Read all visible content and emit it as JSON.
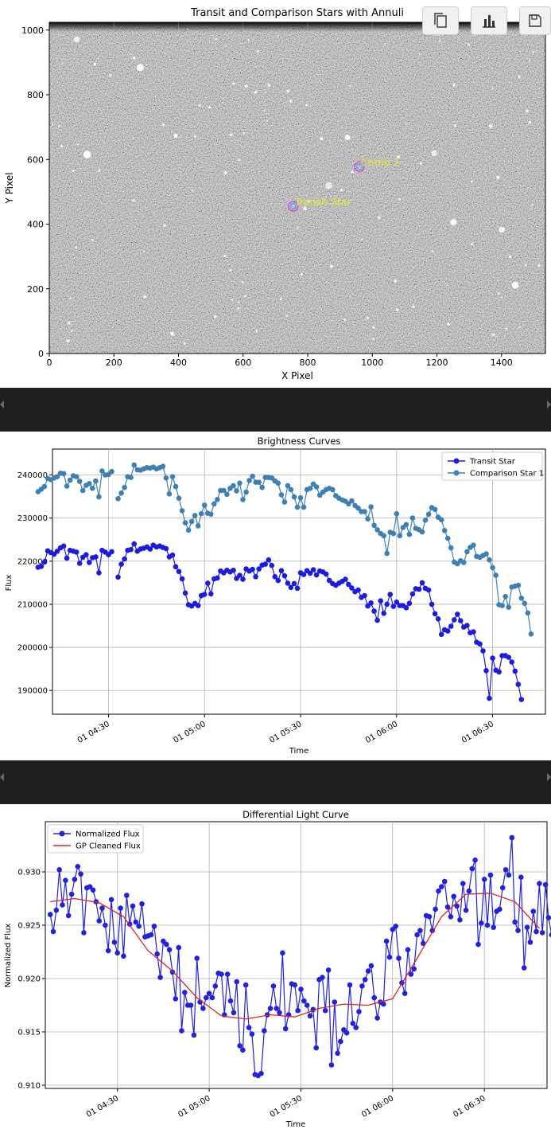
{
  "toolbar": {
    "buttons": [
      {
        "name": "copy-icon"
      },
      {
        "name": "bar-chart-icon"
      },
      {
        "name": "save-icon"
      }
    ]
  },
  "colors": {
    "transit": "#1c1ce0",
    "comparison": "#3e7fb4",
    "normalized": "#2222dd",
    "gp": "#e0241e",
    "label": "#e8e832"
  },
  "chart_data": [
    {
      "type": "image",
      "title": "Transit and Comparison Stars with Annuli",
      "xlabel": "X Pixel",
      "ylabel": "Y Pixel",
      "xlim": [
        0,
        1536
      ],
      "ylim": [
        0,
        1024
      ],
      "xticks": [
        0,
        200,
        400,
        600,
        800,
        1000,
        1200,
        1400
      ],
      "yticks": [
        0,
        200,
        400,
        600,
        800,
        1000
      ],
      "grid": true,
      "annotations": [
        {
          "label": "Transit Star",
          "x": 755,
          "y": 455
        },
        {
          "label": "Comp 1",
          "x": 960,
          "y": 578
        }
      ]
    },
    {
      "type": "line",
      "title": "Brightness Curves",
      "xlabel": "Time",
      "ylabel": "Flux",
      "xticks": [
        "01 04:30",
        "01 05:00",
        "01 05:30",
        "01 06:00",
        "01 06:30"
      ],
      "yticks": [
        190000,
        200000,
        210000,
        220000,
        230000,
        240000
      ],
      "ylim": [
        184500,
        246000
      ],
      "xlim_minutes": [
        4.5,
        158.5
      ],
      "legend": "top-right",
      "grid": true,
      "x_start": "01 04:08",
      "x_step_minutes": 1.0,
      "series": [
        {
          "name": "Transit Star",
          "values": [
            218600,
            218800,
            219800,
            222400,
            222000,
            221600,
            222300,
            223100,
            223500,
            220700,
            222500,
            222300,
            222100,
            219500,
            220900,
            221500,
            219700,
            220800,
            221000,
            217300,
            222500,
            222100,
            221500,
            222200,
            null,
            216300,
            219300,
            220500,
            222500,
            222700,
            224000,
            222300,
            222800,
            223000,
            223300,
            222800,
            223700,
            223300,
            223500,
            223200,
            222900,
            221000,
            221400,
            218700,
            217600,
            215900,
            212600,
            209900,
            209600,
            210200,
            209700,
            212000,
            212300,
            214900,
            212400,
            215900,
            216100,
            217700,
            217300,
            217900,
            217500,
            217900,
            216000,
            216700,
            215800,
            218200,
            217700,
            218100,
            216400,
            218200,
            219100,
            219300,
            220300,
            219000,
            216400,
            215500,
            217800,
            216600,
            214900,
            213900,
            214800,
            213700,
            217300,
            216900,
            217800,
            217200,
            218000,
            216800,
            217700,
            217500,
            217000,
            215500,
            214800,
            214400,
            214900,
            215300,
            215800,
            214600,
            213800,
            212900,
            213300,
            211600,
            212000,
            209600,
            210300,
            208400,
            206300,
            210800,
            207900,
            210000,
            212300,
            209500,
            210500,
            209700,
            209700,
            209200,
            210200,
            212400,
            213600,
            213500,
            215000,
            213700,
            213300,
            210000,
            207800,
            206600,
            203000,
            204100,
            203800,
            204900,
            206400,
            207700,
            206200,
            204700,
            205100,
            203400,
            203600,
            201200,
            200800,
            199200,
            194600,
            188200,
            197500,
            194700,
            194300,
            198100,
            198100,
            197700,
            196600,
            194500,
            191400,
            187900
          ]
        },
        {
          "name": "Comparison Star 1",
          "values": [
            236100,
            236700,
            237300,
            239200,
            238900,
            239300,
            239600,
            240400,
            240300,
            237400,
            238800,
            239800,
            239600,
            238500,
            236400,
            237600,
            238000,
            236900,
            238600,
            234900,
            240900,
            240000,
            240100,
            240800,
            null,
            234500,
            235800,
            237100,
            239600,
            239400,
            242300,
            241200,
            241100,
            241400,
            241700,
            241600,
            241800,
            241400,
            241700,
            242000,
            239300,
            235600,
            239600,
            237300,
            234600,
            231700,
            228900,
            227200,
            229200,
            230600,
            228200,
            231000,
            233000,
            231100,
            230900,
            233300,
            234300,
            236400,
            236400,
            235500,
            236900,
            237500,
            236300,
            238100,
            234300,
            236000,
            238700,
            239700,
            238300,
            238300,
            237100,
            239400,
            239400,
            239300,
            238600,
            238100,
            235400,
            233700,
            237500,
            236600,
            234900,
            232500,
            234700,
            232500,
            236600,
            236900,
            237900,
            237200,
            235300,
            236000,
            236600,
            236900,
            236600,
            235200,
            234600,
            234200,
            233900,
            233300,
            234000,
            232900,
            232300,
            231500,
            231500,
            229800,
            232600,
            228300,
            227300,
            226400,
            225900,
            221800,
            226700,
            226400,
            231000,
            225900,
            227800,
            228500,
            226200,
            230000,
            227600,
            227300,
            226800,
            229500,
            230900,
            232400,
            232000,
            230200,
            229600,
            227100,
            225300,
            223100,
            219800,
            219400,
            220100,
            219700,
            222200,
            223200,
            223700,
            221100,
            220900,
            221300,
            221700,
            220300,
            218500,
            216700,
            209900,
            209700,
            211800,
            209300,
            214000,
            214200,
            214400,
            211400,
            210200,
            208000,
            203100
          ]
        }
      ]
    },
    {
      "type": "line",
      "title": "Differential Light Curve",
      "xlabel": "Time",
      "ylabel": "Normalized Flux",
      "xticks": [
        "01 04:30",
        "01 05:00",
        "01 05:30",
        "01 06:00",
        "01 06:30"
      ],
      "yticks": [
        0.91,
        0.915,
        0.92,
        0.925,
        0.93
      ],
      "ylim": [
        0.9097,
        0.9347
      ],
      "xlim_minutes": [
        -1.6,
        162.5
      ],
      "legend": "top-left",
      "grid": true,
      "x_start": "01 04:08",
      "x_step_minutes": 1.0,
      "series": [
        {
          "name": "Normalized Flux",
          "values": [
            0.926,
            0.9244,
            0.9264,
            0.9302,
            0.9269,
            0.9292,
            0.9259,
            0.9279,
            0.9293,
            0.9305,
            0.9298,
            0.9243,
            0.9285,
            0.9286,
            0.9283,
            0.9272,
            0.9254,
            0.9266,
            0.925,
            0.9226,
            0.9274,
            0.9234,
            0.9224,
            0.9266,
            0.9221,
            0.9278,
            0.9251,
            0.9268,
            0.9253,
            0.9249,
            0.927,
            0.9239,
            0.924,
            0.9241,
            0.9249,
            0.9223,
            0.9201,
            0.9235,
            0.9232,
            0.9227,
            0.9206,
            0.9181,
            0.9229,
            0.9151,
            0.9187,
            0.9175,
            0.9175,
            0.9147,
            0.9219,
            0.9178,
            0.9172,
            0.9182,
            0.9186,
            0.9182,
            0.9193,
            0.9205,
            0.9204,
            0.9166,
            0.9204,
            0.9179,
            0.9168,
            0.9197,
            0.9137,
            0.9133,
            0.9194,
            0.9154,
            0.9148,
            0.911,
            0.9109,
            0.9111,
            0.9151,
            0.9166,
            0.9172,
            0.9193,
            0.9172,
            0.9168,
            0.9224,
            0.9153,
            0.9166,
            0.9195,
            0.9194,
            0.917,
            0.919,
            0.9179,
            0.9175,
            0.9165,
            0.9171,
            0.9135,
            0.9199,
            0.9201,
            0.917,
            0.9208,
            0.9119,
            0.9178,
            0.913,
            0.9141,
            0.9152,
            0.9149,
            0.9194,
            0.9158,
            0.9154,
            0.9169,
            0.9193,
            0.9199,
            0.9207,
            0.9212,
            0.9182,
            0.9163,
            0.9178,
            0.9176,
            0.9235,
            0.922,
            0.9246,
            0.9249,
            0.9219,
            0.9196,
            0.9186,
            0.9227,
            0.9204,
            0.9209,
            0.9241,
            0.9245,
            0.9233,
            0.9259,
            0.9258,
            0.9245,
            0.9265,
            0.9282,
            0.9286,
            0.9291,
            0.9267,
            0.9258,
            0.9277,
            0.9268,
            0.9255,
            0.9289,
            0.9264,
            0.9282,
            0.9303,
            0.9311,
            0.9232,
            0.9252,
            0.9293,
            0.925,
            0.9297,
            0.9248,
            0.9263,
            0.9265,
            0.9285,
            0.9302,
            0.9297,
            0.9332,
            0.9253,
            0.9245,
            0.9295,
            0.921,
            0.9248,
            0.9234,
            0.9263,
            0.9244,
            0.9289,
            0.9243,
            0.9288,
            0.9257,
            0.9241,
            0.9284,
            0.9271
          ]
        },
        {
          "name": "GP Cleaned Flux",
          "type": "smooth",
          "x_minutes": [
            0,
            8,
            16,
            24,
            32,
            40,
            48,
            56,
            64,
            72,
            80,
            88,
            96,
            104,
            112,
            120,
            128,
            136,
            144,
            152,
            160
          ],
          "values": [
            0.9272,
            0.9275,
            0.9271,
            0.9258,
            0.9226,
            0.9207,
            0.9182,
            0.9165,
            0.9162,
            0.9166,
            0.9164,
            0.9172,
            0.9176,
            0.9175,
            0.9181,
            0.9219,
            0.9258,
            0.9279,
            0.928,
            0.9272,
            0.9247
          ]
        }
      ]
    }
  ]
}
